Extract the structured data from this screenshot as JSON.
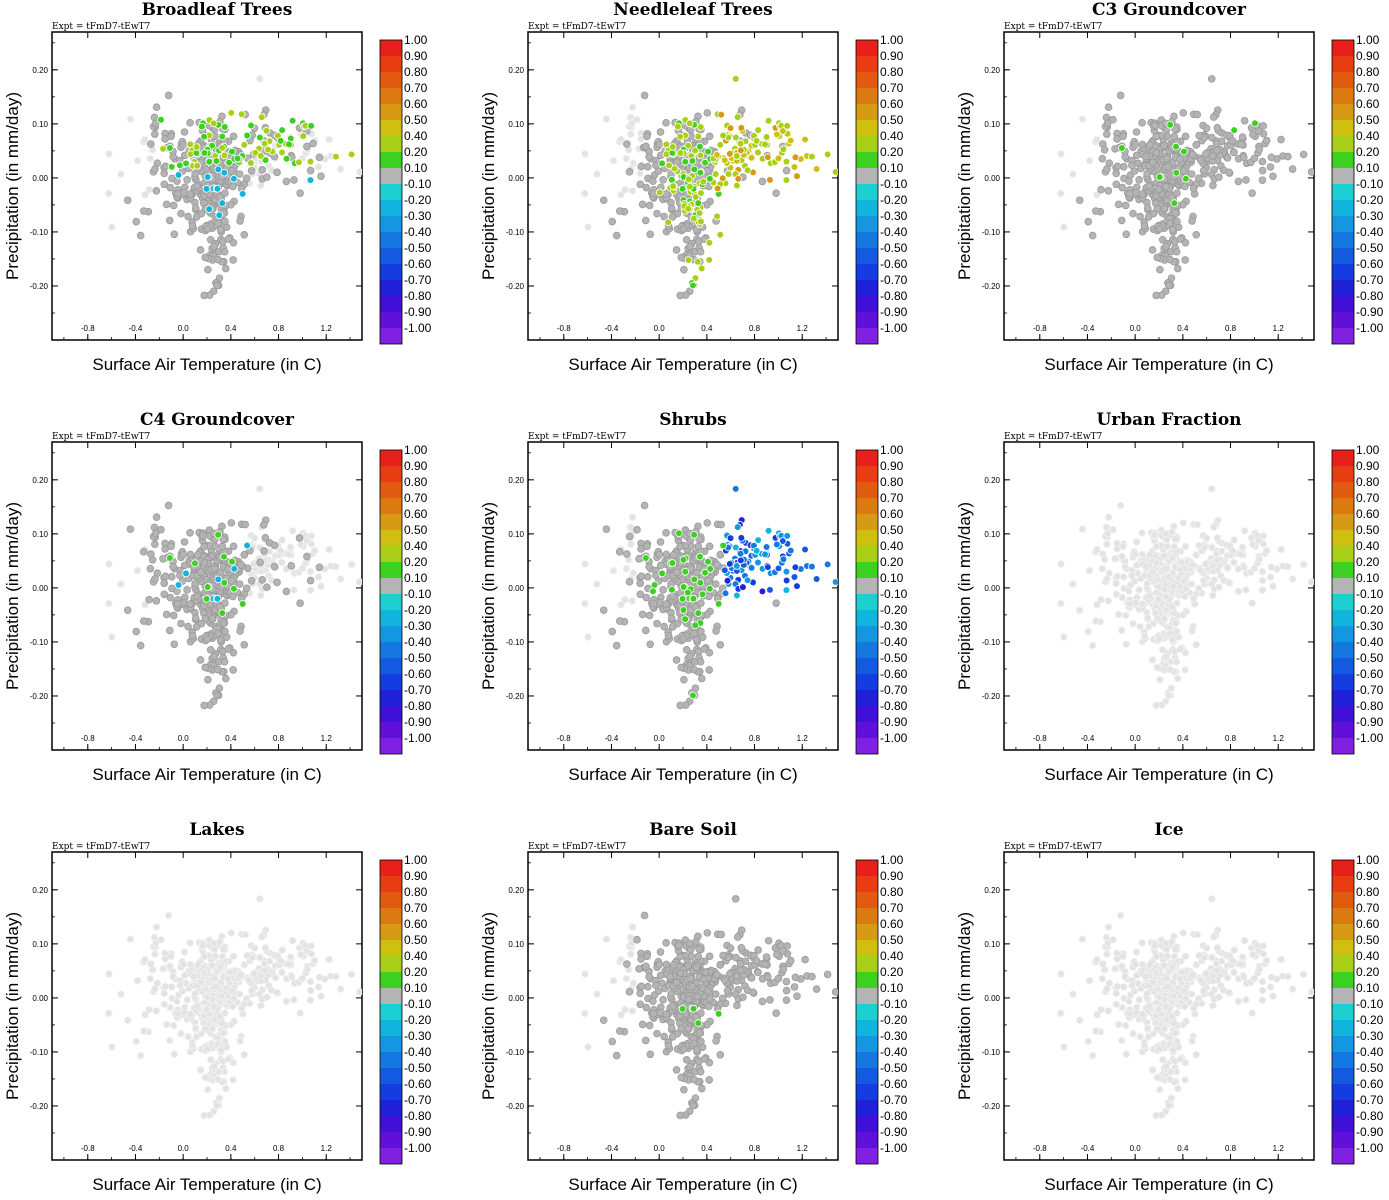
{
  "figure": {
    "experiment_label": "Expt = tFmD7-tEwT7",
    "xlabel": "Surface Air Temperature (in C)",
    "ylabel": "Precipitation (in mm/day)"
  },
  "chart_data": [
    {
      "type": "scatter",
      "title": "Broadleaf Trees",
      "xlabel": "Surface Air Temperature (in C)",
      "ylabel": "Precipitation (in mm/day)",
      "xlim": [
        -1.1,
        1.5
      ],
      "ylim": [
        -0.3,
        0.27
      ],
      "xticks": [
        -0.8,
        -0.4,
        0.0,
        0.4,
        0.8,
        1.2
      ],
      "yticks": [
        -0.2,
        -0.1,
        0.0,
        0.1,
        0.2
      ],
      "color_variable": "correlation",
      "dominant_value_range": [
        0.1,
        0.3
      ],
      "note": "green points concentrated in warm/wet region"
    },
    {
      "type": "scatter",
      "title": "Needleleaf Trees",
      "xlabel": "Surface Air Temperature (in C)",
      "ylabel": "Precipitation (in mm/day)",
      "xlim": [
        -1.1,
        1.5
      ],
      "ylim": [
        -0.3,
        0.27
      ],
      "xticks": [
        -0.8,
        -0.4,
        0.0,
        0.4,
        0.8,
        1.2
      ],
      "yticks": [
        -0.2,
        -0.1,
        0.0,
        0.1,
        0.2
      ],
      "color_variable": "correlation",
      "dominant_value_range": [
        0.1,
        0.6
      ]
    },
    {
      "type": "scatter",
      "title": "C3 Groundcover",
      "xlabel": "Surface Air Temperature (in C)",
      "ylabel": "Precipitation (in mm/day)",
      "xlim": [
        -1.1,
        1.5
      ],
      "ylim": [
        -0.3,
        0.27
      ],
      "xticks": [
        -0.8,
        -0.4,
        0.0,
        0.4,
        0.8,
        1.2
      ],
      "yticks": [
        -0.2,
        -0.1,
        0.0,
        0.1,
        0.2
      ],
      "color_variable": "correlation",
      "dominant_value_range": [
        -0.1,
        0.1
      ]
    },
    {
      "type": "scatter",
      "title": "C4 Groundcover",
      "xlabel": "Surface Air Temperature (in C)",
      "ylabel": "Precipitation (in mm/day)",
      "xlim": [
        -1.1,
        1.5
      ],
      "ylim": [
        -0.3,
        0.27
      ],
      "xticks": [
        -0.8,
        -0.4,
        0.0,
        0.4,
        0.8,
        1.2
      ],
      "yticks": [
        -0.2,
        -0.1,
        0.0,
        0.1,
        0.2
      ],
      "color_variable": "correlation",
      "dominant_value_range": [
        -0.1,
        0.1
      ]
    },
    {
      "type": "scatter",
      "title": "Shrubs",
      "xlabel": "Surface Air Temperature (in C)",
      "ylabel": "Precipitation (in mm/day)",
      "xlim": [
        -1.1,
        1.5
      ],
      "ylim": [
        -0.3,
        0.27
      ],
      "xticks": [
        -0.8,
        -0.4,
        0.0,
        0.4,
        0.8,
        1.2
      ],
      "yticks": [
        -0.2,
        -0.1,
        0.0,
        0.1,
        0.2
      ],
      "color_variable": "correlation",
      "dominant_value_range": [
        -0.7,
        -0.2
      ]
    },
    {
      "type": "scatter",
      "title": "Urban Fraction",
      "xlabel": "Surface Air Temperature (in C)",
      "ylabel": "Precipitation (in mm/day)",
      "xlim": [
        -1.1,
        1.5
      ],
      "ylim": [
        -0.3,
        0.27
      ],
      "xticks": [
        -0.8,
        -0.4,
        0.0,
        0.4,
        0.8,
        1.2
      ],
      "yticks": [
        -0.2,
        -0.1,
        0.0,
        0.1,
        0.2
      ],
      "color_variable": "correlation",
      "dominant_value_range": [
        0.0,
        0.0
      ]
    },
    {
      "type": "scatter",
      "title": "Lakes",
      "xlabel": "Surface Air Temperature (in C)",
      "ylabel": "Precipitation (in mm/day)",
      "xlim": [
        -1.1,
        1.5
      ],
      "ylim": [
        -0.3,
        0.27
      ],
      "xticks": [
        -0.8,
        -0.4,
        0.0,
        0.4,
        0.8,
        1.2
      ],
      "yticks": [
        -0.2,
        -0.1,
        0.0,
        0.1,
        0.2
      ],
      "color_variable": "correlation",
      "dominant_value_range": [
        0.0,
        0.0
      ]
    },
    {
      "type": "scatter",
      "title": "Bare Soil",
      "xlabel": "Surface Air Temperature (in C)",
      "ylabel": "Precipitation (in mm/day)",
      "xlim": [
        -1.1,
        1.5
      ],
      "ylim": [
        -0.3,
        0.27
      ],
      "xticks": [
        -0.8,
        -0.4,
        0.0,
        0.4,
        0.8,
        1.2
      ],
      "yticks": [
        -0.2,
        -0.1,
        0.0,
        0.1,
        0.2
      ],
      "color_variable": "correlation",
      "dominant_value_range": [
        -0.1,
        0.1
      ]
    },
    {
      "type": "scatter",
      "title": "Ice",
      "xlabel": "Surface Air Temperature (in C)",
      "ylabel": "Precipitation (in mm/day)",
      "xlim": [
        -1.1,
        1.5
      ],
      "ylim": [
        -0.3,
        0.27
      ],
      "xticks": [
        -0.8,
        -0.4,
        0.0,
        0.4,
        0.8,
        1.2
      ],
      "yticks": [
        -0.2,
        -0.1,
        0.0,
        0.1,
        0.2
      ],
      "color_variable": "correlation",
      "dominant_value_range": [
        0.0,
        0.0
      ]
    }
  ],
  "xtick_labels": [
    "-0.8",
    "-0.4",
    "0.0",
    "0.4",
    "0.8",
    "1.2"
  ],
  "ytick_labels": [
    "0.20",
    "0.10",
    "0.00",
    "-0.10",
    "-0.20"
  ],
  "colorbar": {
    "labels": [
      "1.00",
      "0.90",
      "0.80",
      "0.70",
      "0.60",
      "0.50",
      "0.40",
      "0.20",
      "0.10",
      "-0.10",
      "-0.20",
      "-0.30",
      "-0.40",
      "-0.50",
      "-0.60",
      "-0.70",
      "-0.80",
      "-0.90",
      "-1.00"
    ],
    "colors": [
      "#e8201c",
      "#e83c12",
      "#e05a10",
      "#dc7a12",
      "#d69a14",
      "#cfc010",
      "#a8d018",
      "#3cd020",
      "#b4b4b4",
      "#1ccfd0",
      "#10b4dc",
      "#1496e0",
      "#1478e0",
      "#145ae0",
      "#143ce0",
      "#2020d8",
      "#4010d8",
      "#6010d8",
      "#8020e0"
    ],
    "neutral_color": "#b4b4b4",
    "light_color": "#e3e3e3"
  }
}
